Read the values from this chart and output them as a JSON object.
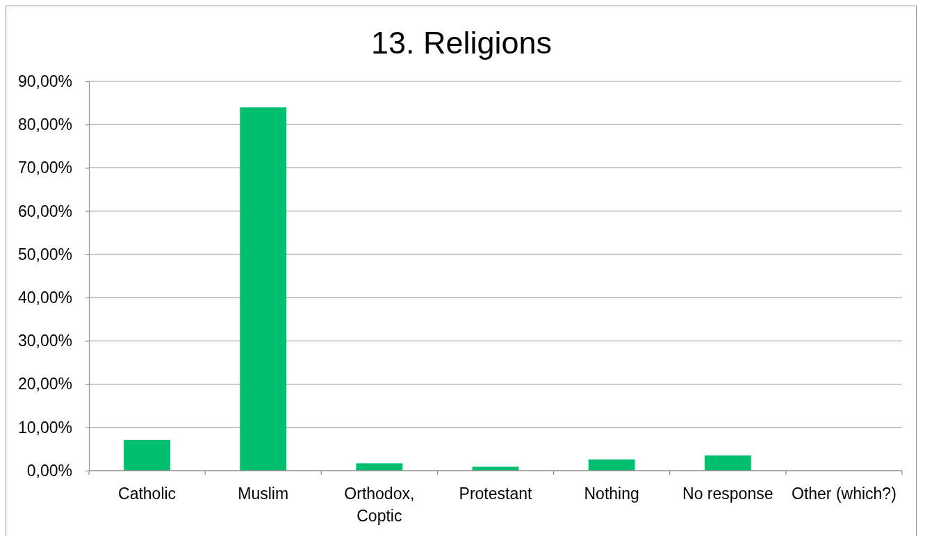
{
  "chart_data": {
    "type": "bar",
    "title": "13. Religions",
    "categories": [
      "Catholic",
      "Muslim",
      "Orthodox, Coptic",
      "Protestant",
      "Nothing",
      "No response",
      "Other (which?)"
    ],
    "values": [
      7.1,
      84.0,
      1.7,
      0.9,
      2.6,
      3.5,
      0
    ],
    "color": "#00bf6f",
    "ylim": [
      0,
      90
    ],
    "yticks": [
      {
        "value": 0,
        "label": "0,00%"
      },
      {
        "value": 10,
        "label": "10,00%"
      },
      {
        "value": 20,
        "label": "20,00%"
      },
      {
        "value": 30,
        "label": "30,00%"
      },
      {
        "value": 40,
        "label": "40,00%"
      },
      {
        "value": 50,
        "label": "50,00%"
      },
      {
        "value": 60,
        "label": "60,00%"
      },
      {
        "value": 70,
        "label": "70,00%"
      },
      {
        "value": 80,
        "label": "80,00%"
      },
      {
        "value": 90,
        "label": "90,00%"
      }
    ],
    "grid": "y"
  }
}
